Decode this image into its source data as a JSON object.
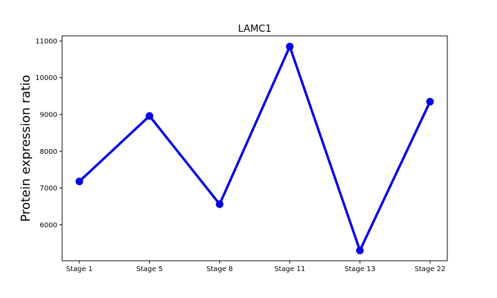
{
  "chart_data": {
    "type": "line",
    "title": "LAMC1",
    "xlabel": "",
    "ylabel": "Protein expression ratio",
    "categories": [
      "Stage 1",
      "Stage 5",
      "Stage 8",
      "Stage 11",
      "Stage 13",
      "Stage 22"
    ],
    "series": [
      {
        "values": [
          7180,
          8960,
          6560,
          10850,
          5300,
          9350
        ],
        "color": "#0000e6"
      }
    ],
    "ylim": [
      5020,
      11140
    ],
    "yticks": [
      6000,
      7000,
      8000,
      9000,
      10000,
      11000
    ],
    "grid": false,
    "legend": "none"
  }
}
